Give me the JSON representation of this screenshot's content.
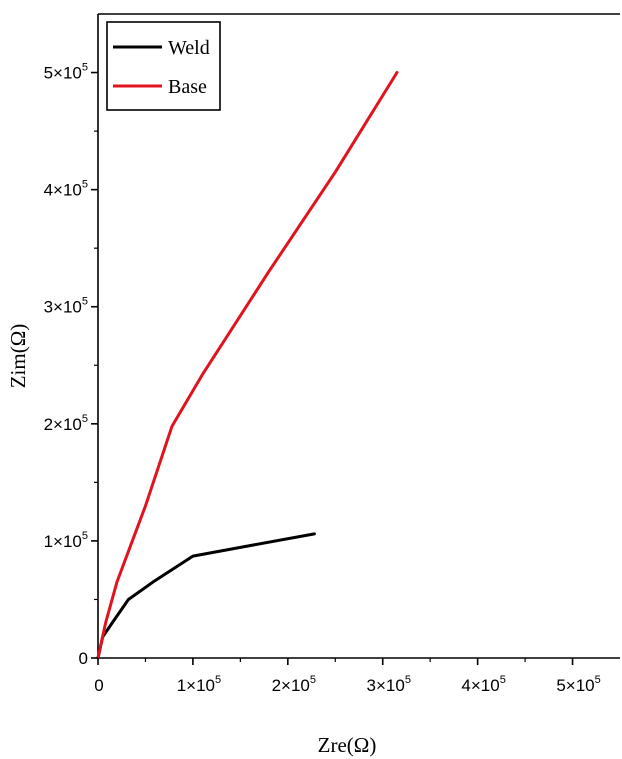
{
  "chart_data": {
    "type": "line",
    "title": "",
    "xlabel": "Zre(Ω)",
    "ylabel": "Zim(Ω)",
    "xlim": [
      0,
      550000
    ],
    "ylim": [
      0,
      550000
    ],
    "x_ticks": [
      {
        "value": 0,
        "mantissa": "0",
        "exponent": ""
      },
      {
        "value": 100000,
        "mantissa": "1×10",
        "exponent": "5"
      },
      {
        "value": 200000,
        "mantissa": "2×10",
        "exponent": "5"
      },
      {
        "value": 300000,
        "mantissa": "3×10",
        "exponent": "5"
      },
      {
        "value": 400000,
        "mantissa": "4×10",
        "exponent": "5"
      },
      {
        "value": 500000,
        "mantissa": "5×10",
        "exponent": "5"
      }
    ],
    "y_ticks": [
      {
        "value": 0,
        "mantissa": "0",
        "exponent": ""
      },
      {
        "value": 100000,
        "mantissa": "1×10",
        "exponent": "5"
      },
      {
        "value": 200000,
        "mantissa": "2×10",
        "exponent": "5"
      },
      {
        "value": 300000,
        "mantissa": "3×10",
        "exponent": "5"
      },
      {
        "value": 400000,
        "mantissa": "4×10",
        "exponent": "5"
      },
      {
        "value": 500000,
        "mantissa": "5×10",
        "exponent": "5"
      }
    ],
    "grid": false,
    "legend_position": "top-left",
    "series": [
      {
        "name": "Weld",
        "color": "#000000",
        "points": [
          [
            0,
            0
          ],
          [
            5000,
            18000
          ],
          [
            15000,
            30000
          ],
          [
            32000,
            50000
          ],
          [
            60000,
            66000
          ],
          [
            100000,
            87000
          ],
          [
            160000,
            96000
          ],
          [
            228000,
            106000
          ]
        ]
      },
      {
        "name": "Base",
        "color": "#e0141e",
        "points": [
          [
            0,
            0
          ],
          [
            8000,
            30000
          ],
          [
            20000,
            65000
          ],
          [
            50000,
            130000
          ],
          [
            78000,
            198000
          ],
          [
            110000,
            242000
          ],
          [
            180000,
            330000
          ],
          [
            250000,
            415000
          ],
          [
            315000,
            500000
          ]
        ]
      }
    ]
  }
}
